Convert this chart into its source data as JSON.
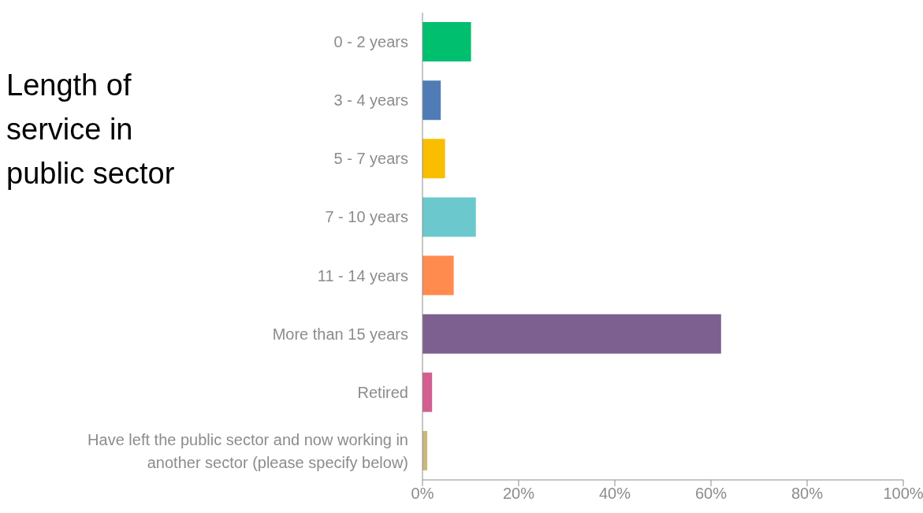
{
  "chart_data": {
    "type": "bar",
    "orientation": "horizontal",
    "title": "Length of service in public sector",
    "categories": [
      "0 - 2 years",
      "3 - 4 years",
      "5 - 7 years",
      "7 - 10 years",
      "11 - 14 years",
      "More than 15 years",
      "Retired",
      "Have left the public sector and now working in another sector (please specify below)"
    ],
    "values": [
      10.1,
      3.8,
      4.7,
      11.1,
      6.5,
      62.1,
      2.0,
      1.0
    ],
    "colors": [
      "#00bf6f",
      "#507cb6",
      "#f9be00",
      "#6bc8cd",
      "#ff8b4f",
      "#7d5f90",
      "#d25f90",
      "#c9b87a"
    ],
    "xlim": [
      0,
      100
    ],
    "xticks": [
      {
        "value": 0,
        "label": "0%"
      },
      {
        "value": 20,
        "label": "20%"
      },
      {
        "value": 40,
        "label": "40%"
      },
      {
        "value": 60,
        "label": "60%"
      },
      {
        "value": 80,
        "label": "80%"
      },
      {
        "value": 100,
        "label": "100%"
      }
    ],
    "grid": false,
    "legend": false
  }
}
